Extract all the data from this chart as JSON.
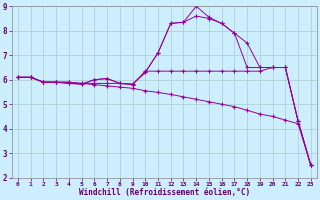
{
  "xlabel": "Windchill (Refroidissement éolien,°C)",
  "background_color": "#cceeff",
  "grid_color": "#aacccc",
  "line_color": "#990099",
  "xmin": 0,
  "xmax": 23,
  "ymin": 2,
  "ymax": 9,
  "yticks": [
    2,
    3,
    4,
    5,
    6,
    7,
    8,
    9
  ],
  "xticks": [
    0,
    1,
    2,
    3,
    4,
    5,
    6,
    7,
    8,
    9,
    10,
    11,
    12,
    13,
    14,
    15,
    16,
    17,
    18,
    19,
    20,
    21,
    22,
    23
  ],
  "line1_y": [
    6.1,
    6.1,
    5.9,
    5.9,
    5.9,
    5.85,
    5.8,
    5.75,
    5.7,
    5.65,
    5.55,
    5.48,
    5.4,
    5.3,
    5.2,
    5.1,
    5.0,
    4.9,
    4.75,
    4.6,
    4.5,
    4.35,
    4.2,
    2.5
  ],
  "line2_y": [
    6.1,
    6.1,
    5.9,
    5.9,
    5.9,
    5.85,
    5.85,
    5.85,
    5.85,
    5.8,
    6.35,
    6.35,
    6.35,
    6.35,
    6.35,
    6.35,
    6.35,
    6.35,
    6.35,
    6.35,
    6.5,
    6.5,
    4.3,
    2.5
  ],
  "line3_y": [
    6.1,
    6.1,
    5.9,
    5.9,
    5.85,
    5.82,
    6.0,
    6.05,
    5.85,
    5.82,
    6.3,
    7.1,
    8.3,
    8.35,
    9.0,
    8.55,
    8.3,
    7.9,
    6.5,
    6.5,
    6.5,
    6.5,
    4.3,
    2.5
  ],
  "line4_y": [
    6.1,
    6.1,
    5.9,
    5.9,
    5.85,
    5.82,
    6.0,
    6.05,
    5.85,
    5.82,
    6.3,
    7.1,
    8.3,
    8.35,
    8.6,
    8.5,
    8.3,
    7.9,
    7.5,
    6.5,
    6.5,
    6.5,
    4.3,
    2.5
  ]
}
